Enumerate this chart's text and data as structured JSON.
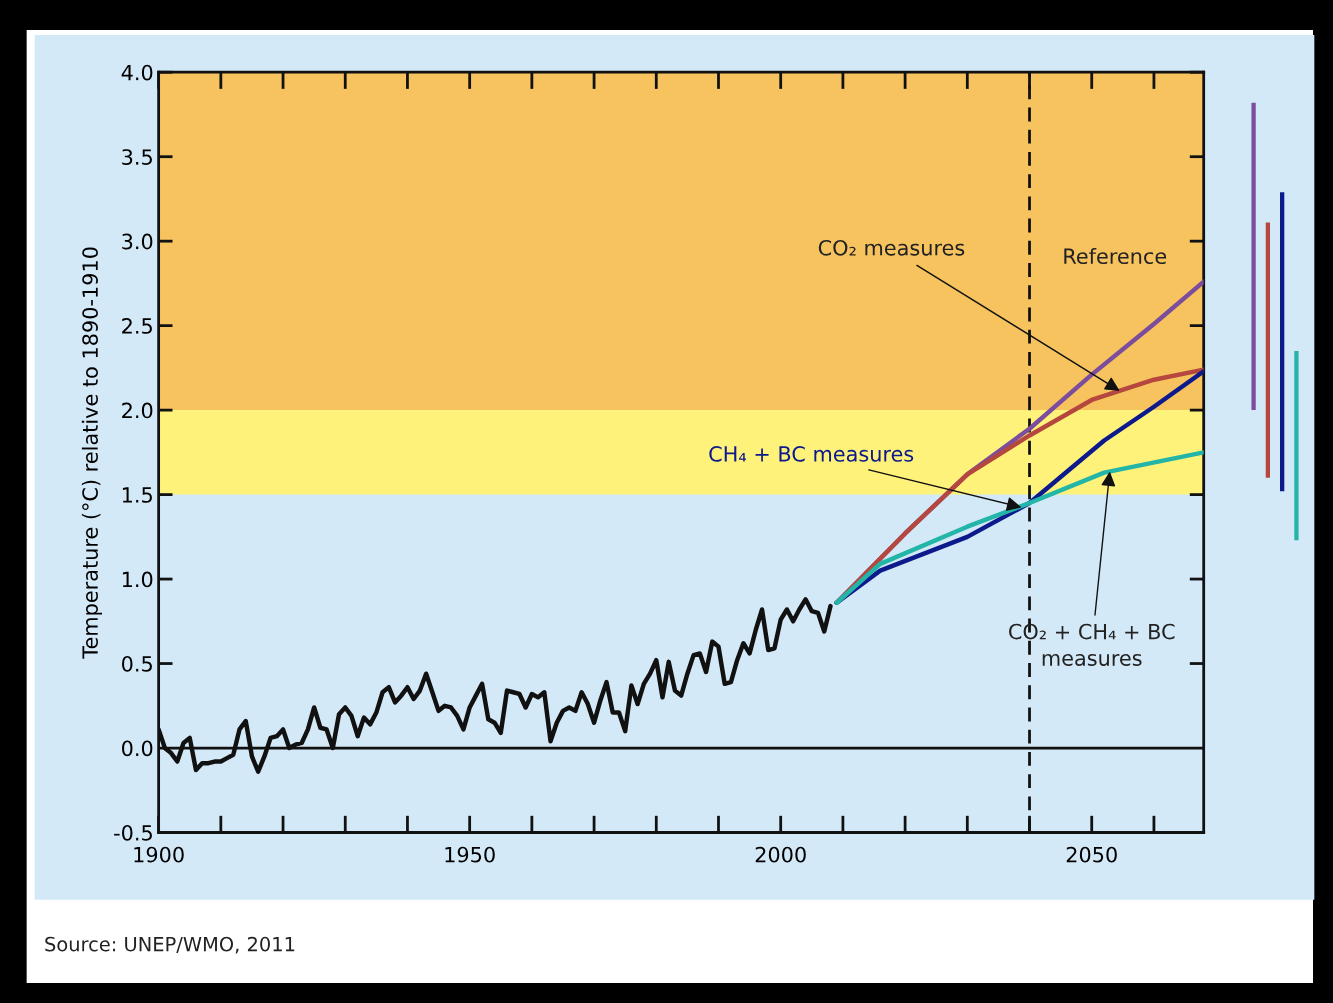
{
  "chart_data": [
    {
      "type": "line",
      "ylabel": "Temperature (°C) relative to 1890-1910",
      "xlim": [
        1900,
        2068
      ],
      "ylim": [
        -0.5,
        4.0
      ],
      "xticks": [
        1900,
        1950,
        2000,
        2050
      ],
      "yticks": [
        -0.5,
        {
          "value": 0,
          "label": "0.0"
        },
        0.5,
        {
          "value": 1,
          "label": "1.0"
        },
        1.5,
        {
          "value": 2,
          "label": "2.0"
        },
        2.5,
        {
          "value": 3,
          "label": "3.0"
        },
        3.5,
        {
          "value": 4,
          "label": "4.0"
        }
      ],
      "bands": [
        {
          "axis": "y",
          "from": 2.0,
          "to": 4.0,
          "color": "#f6c35e"
        },
        {
          "axis": "y",
          "from": 1.5,
          "to": 2.0,
          "color": "#fff27a"
        }
      ],
      "ref_lines": [
        {
          "axis": "y",
          "value": 0,
          "color": "#111111",
          "line_style": "solid"
        },
        {
          "axis": "x",
          "value": 2040,
          "color": "#111111",
          "line_style": "dashed"
        }
      ],
      "series": [
        {
          "color": "#111111",
          "x": [
            1900,
            1901,
            1902,
            1903,
            1904,
            1905,
            1906,
            1907,
            1908,
            1909,
            1910,
            1911,
            1912,
            1913,
            1914,
            1915,
            1916,
            1917,
            1918,
            1919,
            1920,
            1921,
            1922,
            1923,
            1924,
            1925,
            1926,
            1927,
            1928,
            1929,
            1930,
            1931,
            1932,
            1933,
            1934,
            1935,
            1936,
            1937,
            1938,
            1939,
            1940,
            1941,
            1942,
            1943,
            1944,
            1945,
            1946,
            1947,
            1948,
            1949,
            1950,
            1951,
            1952,
            1953,
            1954,
            1955,
            1956,
            1957,
            1958,
            1959,
            1960,
            1961,
            1962,
            1963,
            1964,
            1965,
            1966,
            1967,
            1968,
            1969,
            1970,
            1971,
            1972,
            1973,
            1974,
            1975,
            1976,
            1977,
            1978,
            1979,
            1980,
            1981,
            1982,
            1983,
            1984,
            1985,
            1986,
            1987,
            1988,
            1989,
            1990,
            1991,
            1992,
            1993,
            1994,
            1995,
            1996,
            1997,
            1998,
            1999,
            2000,
            2001,
            2002,
            2003,
            2004,
            2005,
            2006,
            2007,
            2008
          ],
          "values": [
            0.11,
            0.0,
            -0.03,
            -0.08,
            0.03,
            0.06,
            -0.13,
            -0.09,
            -0.09,
            -0.08,
            -0.08,
            -0.06,
            -0.04,
            0.11,
            0.16,
            -0.05,
            -0.14,
            -0.05,
            0.06,
            0.07,
            0.11,
            0.0,
            0.02,
            0.03,
            0.11,
            0.24,
            0.12,
            0.11,
            0.0,
            0.2,
            0.24,
            0.19,
            0.07,
            0.18,
            0.14,
            0.21,
            0.33,
            0.36,
            0.27,
            0.31,
            0.36,
            0.29,
            0.34,
            0.44,
            0.33,
            0.22,
            0.25,
            0.24,
            0.19,
            0.11,
            0.24,
            0.31,
            0.38,
            0.17,
            0.15,
            0.09,
            0.34,
            0.33,
            0.32,
            0.24,
            0.32,
            0.3,
            0.33,
            0.04,
            0.15,
            0.22,
            0.24,
            0.22,
            0.33,
            0.26,
            0.15,
            0.28,
            0.39,
            0.21,
            0.21,
            0.1,
            0.37,
            0.26,
            0.38,
            0.44,
            0.52,
            0.3,
            0.51,
            0.34,
            0.31,
            0.44,
            0.55,
            0.56,
            0.45,
            0.63,
            0.6,
            0.38,
            0.39,
            0.52,
            0.62,
            0.56,
            0.7,
            0.82,
            0.58,
            0.59,
            0.76,
            0.82,
            0.75,
            0.82,
            0.88,
            0.81,
            0.8,
            0.69,
            0.84
          ]
        },
        {
          "name": "Reference",
          "color": "#7b4d9c",
          "x": [
            2009,
            2020,
            2030,
            2040,
            2050,
            2060,
            2068
          ],
          "values": [
            0.86,
            1.27,
            1.62,
            1.89,
            2.21,
            2.51,
            2.76
          ]
        },
        {
          "name": "CO₂ measures",
          "color": "#b5473e",
          "x": [
            2009,
            2020,
            2030,
            2040,
            2050,
            2060,
            2068
          ],
          "values": [
            0.86,
            1.27,
            1.62,
            1.85,
            2.06,
            2.18,
            2.24
          ]
        },
        {
          "name": "CH₄ + BC measures",
          "color": "#0d1a8c",
          "x": [
            2009,
            2016,
            2030,
            2040,
            2052,
            2060,
            2068
          ],
          "values": [
            0.86,
            1.05,
            1.25,
            1.45,
            1.82,
            2.02,
            2.23
          ]
        },
        {
          "name": "CO₂ + CH₄ + BC measures",
          "color": "#23b5a8",
          "x": [
            2009,
            2016,
            2030,
            2040,
            2052,
            2068
          ],
          "values": [
            0.86,
            1.09,
            1.31,
            1.45,
            1.63,
            1.75
          ]
        }
      ],
      "annotations": [
        "Source: UNEP/WMO, 2011"
      ]
    },
    {
      "type": "bar",
      "categories": [
        null,
        null,
        null,
        null
      ],
      "base": [
        2.0,
        1.6,
        1.52,
        1.23
      ],
      "values": [
        1.82,
        1.51,
        1.77,
        1.12
      ],
      "colors": [
        "#7b4d9c",
        "#b5473e",
        "#0d1a8c",
        "#23b5a8"
      ],
      "ylim": [
        -0.5,
        4.0
      ],
      "tick_labels": false
    }
  ]
}
